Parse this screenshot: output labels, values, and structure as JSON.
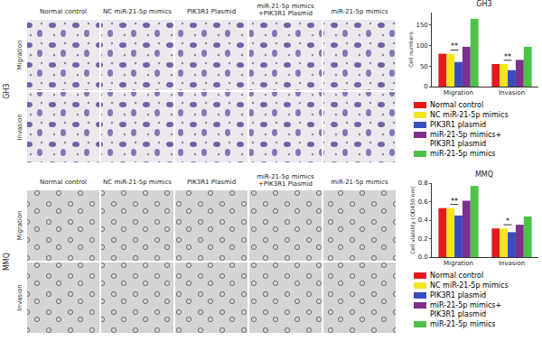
{
  "image_grid": {
    "columns": [
      [
        "Normal control"
      ],
      [
        "NC miR-21-5p mimics"
      ],
      [
        "PIK3R1 Plasmid"
      ],
      [
        "miR-21-5p mimics",
        "+PIK3R1 Plasmid"
      ],
      [
        "miR-21-5p mimics"
      ]
    ],
    "blocks": [
      {
        "cell_line": "GH3",
        "rows": [
          "Migration",
          "Invasion"
        ]
      },
      {
        "cell_line": "MMQ",
        "rows": [
          "Migration",
          "Invasion"
        ]
      }
    ]
  },
  "chart_data": [
    {
      "type": "bar",
      "title": "GH3",
      "y_label": "Cell numbers",
      "categories": [
        "Migration",
        "Invasion"
      ],
      "ylim": [
        0,
        180
      ],
      "yticks": [
        0,
        50,
        100,
        150
      ],
      "series": [
        {
          "name": "Normal control",
          "color": "#e41a1c",
          "values": [
            80,
            55
          ]
        },
        {
          "name": "NC miR-21-5p mimics",
          "color": "#f4e61d",
          "values": [
            80,
            55
          ]
        },
        {
          "name": "PIK3R1 plasmid",
          "color": "#3b4cc0",
          "values": [
            60,
            40
          ]
        },
        {
          "name": "miR-21-5p mimics+ PIK3R1 plasmid",
          "color": "#7e2f8e",
          "values": [
            97,
            65
          ]
        },
        {
          "name": "miR-21-5p mimics",
          "color": "#4dc247",
          "values": [
            165,
            97
          ]
        }
      ],
      "annotations": [
        {
          "category": "Migration",
          "text": "**",
          "between": [
            "NC miR-21-5p mimics",
            "PIK3R1 plasmid"
          ]
        },
        {
          "category": "Invasion",
          "text": "**",
          "between": [
            "NC miR-21-5p mimics",
            "PIK3R1 plasmid"
          ]
        }
      ]
    },
    {
      "type": "bar",
      "title": "MMQ",
      "y_label": "Cell viability (OD450 nm)",
      "categories": [
        "Migration",
        "Invasion"
      ],
      "ylim": [
        0,
        0.8
      ],
      "yticks": [
        {
          "value": 0,
          "label": "0.0"
        },
        0.2,
        0.4,
        0.6,
        0.8
      ],
      "series": [
        {
          "name": "Normal control",
          "color": "#e41a1c",
          "values": [
            0.53,
            0.31
          ]
        },
        {
          "name": "NC miR-21-5p mimics",
          "color": "#f4e61d",
          "values": [
            0.53,
            0.31
          ]
        },
        {
          "name": "PIK3R1 plasmid",
          "color": "#3b4cc0",
          "values": [
            0.45,
            0.27
          ]
        },
        {
          "name": "miR-21-5p mimics+ PIK3R1 plasmid",
          "color": "#7e2f8e",
          "values": [
            0.61,
            0.35
          ]
        },
        {
          "name": "miR-21-5p mimics",
          "color": "#4dc247",
          "values": [
            0.77,
            0.44
          ]
        }
      ],
      "annotations": [
        {
          "category": "Migration",
          "text": "**",
          "between": [
            "NC miR-21-5p mimics",
            "PIK3R1 plasmid"
          ]
        },
        {
          "category": "Invasion",
          "text": "*",
          "between": [
            "NC miR-21-5p mimics",
            "PIK3R1 plasmid"
          ]
        }
      ]
    }
  ]
}
